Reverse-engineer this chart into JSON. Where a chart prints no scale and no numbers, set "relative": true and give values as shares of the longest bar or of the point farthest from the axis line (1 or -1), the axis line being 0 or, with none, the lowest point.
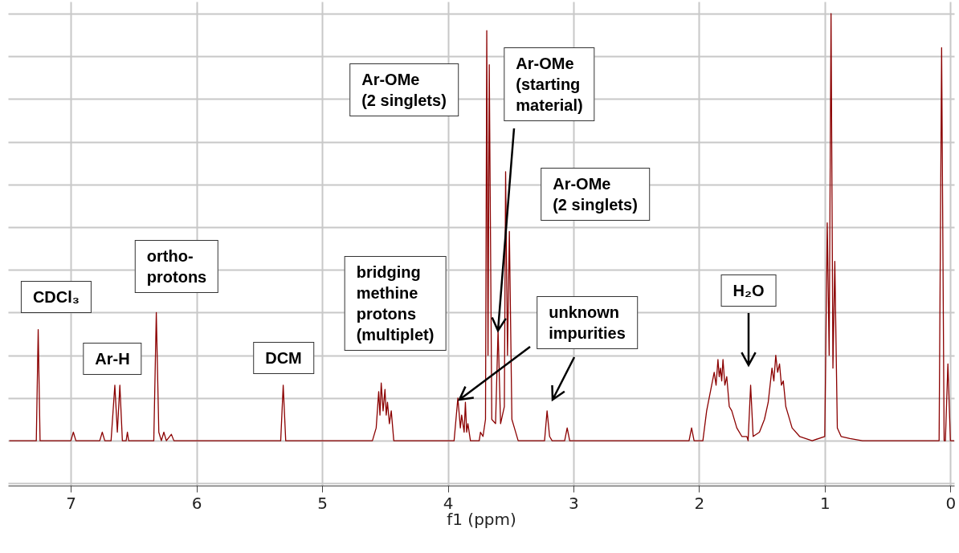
{
  "chart_data": {
    "type": "line",
    "relative": true,
    "xlabel": "f1 (ppm)",
    "xlim": [
      7.5,
      -0.03
    ],
    "xticks": [
      0,
      1,
      2,
      3,
      4,
      5,
      6,
      7
    ],
    "grid": true,
    "marker": "none",
    "line_style": "solid",
    "series": [
      {
        "color": "#8b0000",
        "x": [
          7.49,
          7.275,
          7.26,
          7.245,
          7.0,
          6.98,
          6.96,
          6.77,
          6.75,
          6.73,
          6.68,
          6.65,
          6.63,
          6.61,
          6.59,
          6.56,
          6.55,
          6.54,
          6.34,
          6.32,
          6.3,
          6.28,
          6.26,
          6.24,
          6.2,
          6.18,
          5.33,
          5.31,
          5.29,
          4.6,
          4.57,
          4.55,
          4.54,
          4.53,
          4.515,
          4.5,
          4.49,
          4.48,
          4.465,
          4.45,
          4.43,
          3.95,
          3.92,
          3.9,
          3.89,
          3.87,
          3.86,
          3.85,
          3.84,
          3.82,
          3.75,
          3.74,
          3.72,
          3.7,
          3.69,
          3.68,
          3.67,
          3.65,
          3.62,
          3.6,
          3.58,
          3.55,
          3.54,
          3.525,
          3.51,
          3.49,
          3.47,
          3.44,
          3.23,
          3.21,
          3.19,
          3.17,
          3.07,
          3.05,
          3.03,
          2.08,
          2.06,
          2.04,
          1.97,
          1.94,
          1.9,
          1.88,
          1.865,
          1.85,
          1.84,
          1.83,
          1.82,
          1.81,
          1.795,
          1.78,
          1.76,
          1.74,
          1.7,
          1.66,
          1.62,
          1.61,
          1.59,
          1.57,
          1.52,
          1.48,
          1.45,
          1.42,
          1.405,
          1.39,
          1.375,
          1.36,
          1.345,
          1.33,
          1.31,
          1.29,
          1.26,
          1.2,
          1.1,
          1.0,
          0.98,
          0.965,
          0.95,
          0.935,
          0.92,
          0.9,
          0.87,
          0.8,
          0.7,
          0.09,
          0.07,
          0.05,
          0.04,
          0.02,
          0.0,
          -0.03
        ],
        "values": [
          0,
          0,
          0.26,
          0,
          0,
          0.02,
          0,
          0,
          0.02,
          0,
          0,
          0.13,
          0.02,
          0.13,
          0,
          0,
          0.02,
          0,
          0,
          0.3,
          0.02,
          0,
          0.02,
          0,
          0.015,
          0,
          0,
          0.13,
          0,
          0,
          0.03,
          0.115,
          0.06,
          0.135,
          0.07,
          0.12,
          0.06,
          0.09,
          0.04,
          0.07,
          0,
          0,
          0.1,
          0.03,
          0.06,
          0.02,
          0.09,
          0.02,
          0.04,
          0,
          0,
          0.02,
          0.01,
          0.05,
          0.96,
          0.2,
          0.88,
          0.05,
          0.04,
          0.26,
          0.04,
          0.08,
          0.63,
          0.2,
          0.49,
          0.05,
          0.03,
          0,
          0,
          0.07,
          0.01,
          0,
          0,
          0.03,
          0,
          0,
          0.03,
          0,
          0,
          0.07,
          0.13,
          0.16,
          0.13,
          0.19,
          0.15,
          0.17,
          0.14,
          0.19,
          0.13,
          0.15,
          0.08,
          0.07,
          0.03,
          0.01,
          0.01,
          0,
          0.13,
          0.01,
          0.02,
          0.05,
          0.09,
          0.17,
          0.14,
          0.2,
          0.16,
          0.18,
          0.13,
          0.14,
          0.08,
          0.06,
          0.03,
          0.01,
          0,
          0.01,
          0.51,
          0.2,
          1.0,
          0.17,
          0.42,
          0.03,
          0.01,
          0.005,
          0,
          0,
          0.92,
          0,
          0,
          0.18,
          0,
          0
        ]
      }
    ],
    "annotations": [
      "CDCl₃",
      "Ar-H",
      "ortho-\nprotons",
      "DCM",
      "Ar-OMe\n(2 singlets)",
      "bridging\nmethine\nprotons\n(multiplet)",
      "Ar-OMe\n(starting\nmaterial)",
      "Ar-OMe\n(2 singlets)",
      "unknown\nimpurities",
      "H₂O"
    ]
  }
}
